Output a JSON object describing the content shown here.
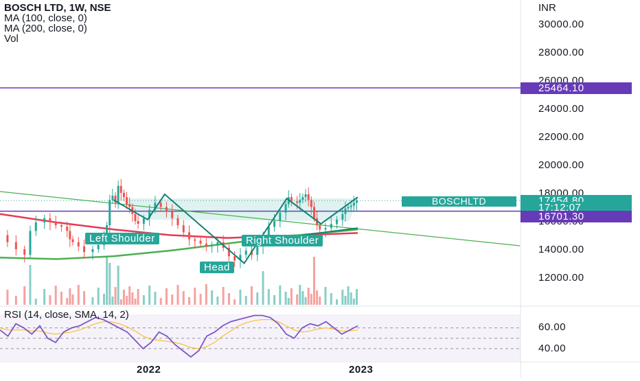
{
  "legend": {
    "symbol": "BOSCH LTD, 1W, NSE",
    "ma100": "MA (100, close, 0)",
    "ma200": "MA (200, close, 0)",
    "vol": "Vol"
  },
  "currency": "INR",
  "price_ticks": [
    "30000.00",
    "28000.00",
    "26000.00",
    "24000.00",
    "22000.00",
    "20000.00",
    "18000.00",
    "16000.00",
    "14000.00",
    "12000.00"
  ],
  "tags": {
    "resistance": "25464.10",
    "last_price": "17454.80",
    "countdown": "17:12:07",
    "support": "16701.30",
    "symbol": "BOSCHLTD"
  },
  "pattern_labels": {
    "left": "Left Shoulder",
    "head": "Head",
    "right": "Right Shoulder"
  },
  "rsi": {
    "legend": "RSI (14, close, SMA, 14, 2)",
    "ticks": [
      "60.00",
      "40.00"
    ]
  },
  "time_ticks": [
    "2022",
    "2023"
  ],
  "colors": {
    "up": "#26a69a",
    "down": "#ef5350",
    "ma100": "#e53950",
    "ma200": "#4caf50",
    "hline": "#673ab7",
    "rsi": "#7e57c2",
    "rsi_ma": "#fbc02d"
  },
  "chart_data": {
    "type": "candlestick",
    "title": "BOSCH LTD, 1W, NSE",
    "ylabel": "INR",
    "ylim": [
      11000,
      31000
    ],
    "horizontal_lines": [
      25464.1,
      16701.3
    ],
    "last_price": 17454.8,
    "pattern": "Head and Shoulders",
    "price_path": [
      {
        "x": 0,
        "y": 15000
      },
      {
        "x": 3,
        "y": 14500
      },
      {
        "x": 6,
        "y": 14000
      },
      {
        "x": 9,
        "y": 13600
      },
      {
        "x": 11,
        "y": 15300
      },
      {
        "x": 13,
        "y": 15900
      },
      {
        "x": 16,
        "y": 16200
      },
      {
        "x": 18,
        "y": 15900
      },
      {
        "x": 20,
        "y": 15700
      },
      {
        "x": 22,
        "y": 15600
      },
      {
        "x": 24,
        "y": 15300
      },
      {
        "x": 25,
        "y": 14700
      },
      {
        "x": 26,
        "y": 14500
      },
      {
        "x": 28,
        "y": 14200
      },
      {
        "x": 30,
        "y": 13800
      },
      {
        "x": 33,
        "y": 14000
      },
      {
        "x": 35,
        "y": 14300
      },
      {
        "x": 37,
        "y": 14800
      },
      {
        "x": 38,
        "y": 15700
      },
      {
        "x": 39,
        "y": 17500
      },
      {
        "x": 40,
        "y": 17800
      },
      {
        "x": 41,
        "y": 17300
      },
      {
        "x": 42,
        "y": 18500
      },
      {
        "x": 43,
        "y": 18000
      },
      {
        "x": 44,
        "y": 17700
      },
      {
        "x": 45,
        "y": 17200
      },
      {
        "x": 46,
        "y": 17000
      },
      {
        "x": 47,
        "y": 16500
      },
      {
        "x": 48,
        "y": 16000
      },
      {
        "x": 49,
        "y": 15800
      },
      {
        "x": 51,
        "y": 16200
      },
      {
        "x": 53,
        "y": 16800
      },
      {
        "x": 55,
        "y": 17300
      },
      {
        "x": 57,
        "y": 17000
      },
      {
        "x": 59,
        "y": 16700
      },
      {
        "x": 61,
        "y": 16200
      },
      {
        "x": 63,
        "y": 15700
      },
      {
        "x": 65,
        "y": 15200
      },
      {
        "x": 67,
        "y": 14700
      },
      {
        "x": 69,
        "y": 14600
      },
      {
        "x": 71,
        "y": 14400
      },
      {
        "x": 73,
        "y": 14200
      },
      {
        "x": 75,
        "y": 14300
      },
      {
        "x": 77,
        "y": 14500
      },
      {
        "x": 79,
        "y": 14100
      },
      {
        "x": 81,
        "y": 13500
      },
      {
        "x": 83,
        "y": 13200
      },
      {
        "x": 85,
        "y": 13600
      },
      {
        "x": 87,
        "y": 13900
      },
      {
        "x": 89,
        "y": 13600
      },
      {
        "x": 91,
        "y": 14200
      },
      {
        "x": 93,
        "y": 15000
      },
      {
        "x": 95,
        "y": 15600
      },
      {
        "x": 97,
        "y": 16000
      },
      {
        "x": 99,
        "y": 16600
      },
      {
        "x": 101,
        "y": 17200
      },
      {
        "x": 102,
        "y": 17700
      },
      {
        "x": 103,
        "y": 17400
      },
      {
        "x": 105,
        "y": 17300
      },
      {
        "x": 106,
        "y": 17500
      },
      {
        "x": 107,
        "y": 17700
      },
      {
        "x": 108,
        "y": 17900
      },
      {
        "x": 109,
        "y": 17500
      },
      {
        "x": 110,
        "y": 17000
      },
      {
        "x": 111,
        "y": 16200
      },
      {
        "x": 112,
        "y": 15700
      },
      {
        "x": 113,
        "y": 15400
      },
      {
        "x": 115,
        "y": 15500
      },
      {
        "x": 117,
        "y": 15800
      },
      {
        "x": 119,
        "y": 16100
      },
      {
        "x": 121,
        "y": 16500
      },
      {
        "x": 122,
        "y": 16900
      },
      {
        "x": 123,
        "y": 17000
      },
      {
        "x": 124,
        "y": 17100
      },
      {
        "x": 125,
        "y": 17300
      },
      {
        "x": 126,
        "y": 17454.8
      }
    ],
    "ma100": [
      {
        "x": 0,
        "y": 16500
      },
      {
        "x": 20,
        "y": 15900
      },
      {
        "x": 40,
        "y": 15400
      },
      {
        "x": 60,
        "y": 15000
      },
      {
        "x": 80,
        "y": 14800
      },
      {
        "x": 100,
        "y": 14950
      },
      {
        "x": 126,
        "y": 15150
      }
    ],
    "ma200": [
      {
        "x": 0,
        "y": 13400
      },
      {
        "x": 20,
        "y": 13300
      },
      {
        "x": 40,
        "y": 13500
      },
      {
        "x": 60,
        "y": 13900
      },
      {
        "x": 80,
        "y": 14400
      },
      {
        "x": 100,
        "y": 14900
      },
      {
        "x": 126,
        "y": 15400
      }
    ],
    "rsi_ylim": [
      28,
      73
    ],
    "rsi_series": [
      58,
      52,
      64,
      60,
      54,
      62,
      50,
      46,
      56,
      60,
      62,
      66,
      70,
      68,
      64,
      60,
      56,
      48,
      40,
      46,
      56,
      52,
      44,
      38,
      32,
      38,
      52,
      56,
      62,
      66,
      68,
      70,
      72,
      72,
      70,
      64,
      54,
      50,
      60,
      64,
      62,
      66,
      60,
      54,
      58,
      62
    ],
    "rsi_ma_series": [
      60,
      58,
      58,
      58,
      57,
      57,
      55,
      54,
      55,
      56,
      58,
      61,
      64,
      66,
      66,
      64,
      61,
      57,
      52,
      49,
      48,
      47,
      46,
      44,
      41,
      40,
      42,
      46,
      52,
      57,
      62,
      65,
      67,
      68,
      68,
      66,
      62,
      58,
      56,
      57,
      59,
      60,
      59,
      57,
      57,
      58
    ]
  }
}
